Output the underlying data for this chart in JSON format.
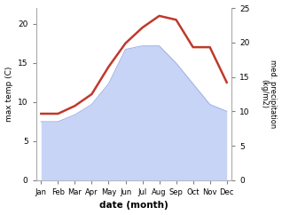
{
  "months": [
    "Jan",
    "Feb",
    "Mar",
    "Apr",
    "May",
    "Jun",
    "Jul",
    "Aug",
    "Sep",
    "Oct",
    "Nov",
    "Dec"
  ],
  "max_temp": [
    8.5,
    8.5,
    9.5,
    11.0,
    14.5,
    17.5,
    19.5,
    21.0,
    20.5,
    17.0,
    17.0,
    12.5
  ],
  "precipitation": [
    8.5,
    8.5,
    9.5,
    11.0,
    14.0,
    19.0,
    19.5,
    19.5,
    17.0,
    14.0,
    11.0,
    10.0
  ],
  "temp_color": "#c0392b",
  "precip_color_fill": "#c8d4f5",
  "precip_color_line": "#a0b4e8",
  "left_ylabel": "max temp (C)",
  "right_ylabel": "med. precipitation\n(kg/m2)",
  "xlabel": "date (month)",
  "left_ylim": [
    0,
    22
  ],
  "right_ylim": [
    0,
    25
  ],
  "left_yticks": [
    0,
    5,
    10,
    15,
    20
  ],
  "right_yticks": [
    0,
    5,
    10,
    15,
    20,
    25
  ],
  "bg_color": "#ffffff",
  "plot_bg_color": "#ffffff",
  "figwidth": 3.18,
  "figheight": 2.42,
  "dpi": 100
}
